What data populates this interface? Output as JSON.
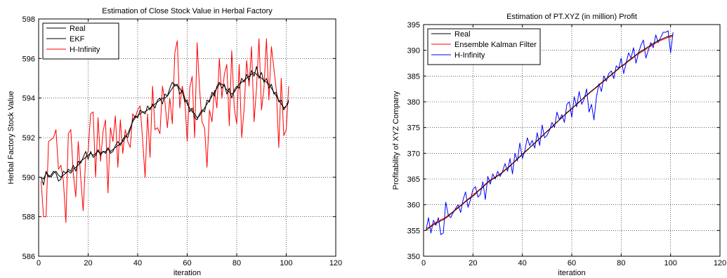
{
  "chart_data": [
    {
      "type": "line",
      "title": "Estimation of Close Stock Value in Herbal Factory",
      "xlabel": "iteration",
      "ylabel": "Herbal Factory Stock Value",
      "xlim": [
        0,
        120
      ],
      "ylim": [
        586,
        598
      ],
      "xticks": [
        0,
        20,
        40,
        60,
        80,
        100,
        120
      ],
      "yticks": [
        586,
        588,
        590,
        592,
        594,
        596,
        598
      ],
      "grid": true,
      "legend_position": "top-left",
      "x_start": 1,
      "series": [
        {
          "name": "Real",
          "color": "#000000",
          "values": [
            590.0,
            589.9,
            590.2,
            590.1,
            590.0,
            590.2,
            590.3,
            590.1,
            590.0,
            590.1,
            590.2,
            590.3,
            590.2,
            590.4,
            590.5,
            590.6,
            590.8,
            590.9,
            591.0,
            591.1,
            591.2,
            591.1,
            591.2,
            591.3,
            591.2,
            591.3,
            591.3,
            591.4,
            591.3,
            591.4,
            591.5,
            591.6,
            591.7,
            591.8,
            592.0,
            592.2,
            592.5,
            592.8,
            593.0,
            593.1,
            593.2,
            593.3,
            593.3,
            593.4,
            593.5,
            593.6,
            593.7,
            593.8,
            593.9,
            594.0,
            594.0,
            594.1,
            594.3,
            594.5,
            594.7,
            594.6,
            594.5,
            594.3,
            594.0,
            593.7,
            593.5,
            593.3,
            593.2,
            593.0,
            593.1,
            593.3,
            593.5,
            593.7,
            593.9,
            594.1,
            594.3,
            594.5,
            594.7,
            594.7,
            594.6,
            594.4,
            594.3,
            594.2,
            594.3,
            594.5,
            594.7,
            594.8,
            594.9,
            595.0,
            595.1,
            595.2,
            595.3,
            595.2,
            595.1,
            595.0,
            594.9,
            594.8,
            594.7,
            594.5,
            594.3,
            594.1,
            593.9,
            593.7,
            593.5,
            593.6,
            593.8
          ]
        },
        {
          "name": "EKF",
          "color": "#000000",
          "values": [
            590.0,
            589.6,
            590.3,
            590.0,
            590.1,
            590.3,
            590.2,
            589.8,
            589.9,
            590.3,
            590.2,
            590.4,
            590.3,
            590.6,
            590.3,
            590.8,
            590.7,
            591.0,
            591.3,
            590.9,
            591.3,
            591.0,
            591.1,
            591.4,
            591.1,
            591.3,
            591.2,
            591.5,
            591.2,
            591.3,
            591.6,
            591.8,
            591.6,
            591.9,
            592.1,
            592.0,
            592.4,
            592.9,
            593.1,
            593.0,
            593.4,
            593.3,
            593.2,
            593.6,
            593.4,
            593.7,
            593.5,
            593.9,
            594.0,
            593.7,
            594.2,
            594.1,
            594.5,
            594.8,
            594.6,
            594.7,
            594.2,
            594.4,
            593.8,
            593.9,
            593.3,
            593.5,
            593.0,
            592.9,
            593.2,
            593.4,
            593.3,
            593.9,
            593.8,
            594.3,
            594.1,
            594.6,
            594.8,
            594.5,
            594.7,
            594.2,
            594.5,
            594.0,
            594.4,
            594.6,
            594.5,
            595.0,
            594.8,
            595.2,
            594.9,
            595.4,
            595.1,
            595.6,
            595.0,
            595.3,
            594.8,
            595.0,
            594.5,
            594.7,
            594.2,
            594.3,
            593.8,
            593.9,
            593.4,
            593.6,
            593.9
          ]
        },
        {
          "name": "H-Infinity",
          "color": "#ff0000",
          "values": [
            589.8,
            588.0,
            588.0,
            591.8,
            591.9,
            592.0,
            592.4,
            590.4,
            590.6,
            589.8,
            587.7,
            592.2,
            592.4,
            590.2,
            589.0,
            591.8,
            590.0,
            588.3,
            591.0,
            591.3,
            593.2,
            593.3,
            590.0,
            593.0,
            590.8,
            592.3,
            592.9,
            589.2,
            592.5,
            591.8,
            593.1,
            590.5,
            592.9,
            591.2,
            592.4,
            591.8,
            591.5,
            593.2,
            593.0,
            593.4,
            593.6,
            591.9,
            590.0,
            593.2,
            591.0,
            594.6,
            592.4,
            592.5,
            592.2,
            594.6,
            593.8,
            592.5,
            594.0,
            592.7,
            596.3,
            596.9,
            593.5,
            594.6,
            594.0,
            591.8,
            594.5,
            595.1,
            592.0,
            596.8,
            594.5,
            592.8,
            592.5,
            590.5,
            593.4,
            592.8,
            594.4,
            593.5,
            596.0,
            594.0,
            595.2,
            595.7,
            592.6,
            596.4,
            593.5,
            592.7,
            595.7,
            592.0,
            593.5,
            595.9,
            594.6,
            596.6,
            592.8,
            594.5,
            597.0,
            593.4,
            594.5,
            597.0,
            593.9,
            596.6,
            595.5,
            594.4,
            591.5,
            595.0,
            592.1,
            592.4,
            594.6
          ]
        }
      ]
    },
    {
      "type": "line",
      "title": "Estimation of PT.XYZ (in million) Profit",
      "xlabel": "iteration",
      "ylabel": "Profitability of XYZ Company",
      "xlim": [
        0,
        120
      ],
      "ylim": [
        350,
        395
      ],
      "xticks": [
        0,
        20,
        40,
        60,
        80,
        100,
        120
      ],
      "yticks": [
        350,
        355,
        360,
        365,
        370,
        375,
        380,
        385,
        390,
        395
      ],
      "grid": true,
      "legend_position": "top-left",
      "x_start": 1,
      "series": [
        {
          "name": "Real",
          "color": "#000000",
          "values": [
            355.0,
            355.4,
            355.8,
            356.1,
            356.4,
            356.6,
            356.9,
            357.1,
            357.4,
            357.8,
            358.2,
            358.6,
            359.0,
            359.4,
            359.8,
            360.2,
            360.6,
            361.0,
            361.3,
            361.7,
            362.1,
            362.6,
            363.0,
            363.4,
            363.9,
            364.3,
            364.7,
            365.0,
            365.3,
            365.6,
            365.9,
            366.3,
            366.7,
            367.1,
            367.5,
            368.0,
            368.4,
            368.9,
            369.3,
            369.8,
            370.2,
            370.6,
            371.1,
            371.5,
            372.0,
            372.4,
            372.9,
            373.3,
            373.8,
            374.2,
            374.7,
            375.1,
            375.6,
            376.0,
            376.5,
            377.0,
            377.4,
            377.9,
            378.3,
            378.7,
            379.1,
            379.6,
            380.0,
            380.4,
            380.9,
            381.3,
            381.7,
            382.1,
            382.5,
            382.9,
            383.3,
            383.7,
            384.1,
            384.5,
            384.9,
            385.3,
            385.7,
            386.1,
            386.5,
            386.9,
            387.2,
            387.6,
            388.0,
            388.4,
            388.7,
            389.1,
            389.5,
            389.8,
            390.1,
            390.4,
            390.7,
            391.0,
            391.3,
            391.6,
            391.9,
            392.1,
            392.3,
            392.5,
            392.7,
            392.8,
            393.0
          ]
        },
        {
          "name": "Ensemble Kalman Filter",
          "color": "#ff0000",
          "values": [
            355.3,
            355.6,
            355.9,
            356.3,
            356.6,
            356.8,
            357.1,
            357.3,
            357.6,
            358.0,
            358.3,
            358.7,
            359.1,
            359.5,
            359.9,
            360.3,
            360.7,
            361.1,
            361.5,
            361.9,
            362.3,
            362.7,
            363.1,
            363.5,
            364.0,
            364.4,
            364.8,
            365.1,
            365.4,
            365.7,
            366.0,
            366.4,
            366.8,
            367.2,
            367.6,
            368.0,
            368.5,
            368.9,
            369.4,
            369.8,
            370.3,
            370.7,
            371.1,
            371.6,
            372.0,
            372.5,
            372.9,
            373.4,
            373.8,
            374.3,
            374.7,
            375.2,
            375.6,
            376.1,
            376.5,
            376.9,
            377.4,
            377.8,
            378.2,
            378.6,
            379.1,
            379.5,
            379.9,
            380.4,
            380.8,
            381.2,
            381.6,
            382.0,
            382.4,
            382.8,
            383.2,
            383.6,
            384.0,
            384.4,
            384.8,
            385.2,
            385.6,
            386.0,
            386.4,
            386.8,
            387.1,
            387.5,
            387.9,
            388.2,
            388.6,
            389.0,
            389.3,
            389.6,
            389.9,
            390.2,
            390.5,
            390.8,
            391.1,
            391.4,
            391.7,
            391.9,
            392.1,
            392.3,
            392.5,
            392.6,
            392.8
          ]
        },
        {
          "name": "H-Infinity",
          "color": "#0000ff",
          "values": [
            355.0,
            357.5,
            354.5,
            357.0,
            356.0,
            357.5,
            354.2,
            354.5,
            360.5,
            358.0,
            357.5,
            358.5,
            359.3,
            360.0,
            358.5,
            361.0,
            362.5,
            359.5,
            361.0,
            363.0,
            363.5,
            361.5,
            362.0,
            364.5,
            361.0,
            365.5,
            364.0,
            366.0,
            365.0,
            366.5,
            365.5,
            366.5,
            368.0,
            366.5,
            369.0,
            366.0,
            370.0,
            368.5,
            372.0,
            369.0,
            370.5,
            373.0,
            371.5,
            372.5,
            371.0,
            374.0,
            371.5,
            375.5,
            373.0,
            373.5,
            374.5,
            376.0,
            375.0,
            378.0,
            376.5,
            377.5,
            376.0,
            379.5,
            380.0,
            377.0,
            381.0,
            379.0,
            382.0,
            379.5,
            380.5,
            382.5,
            378.0,
            379.5,
            376.5,
            381.0,
            383.5,
            382.0,
            385.0,
            384.0,
            385.5,
            386.0,
            384.5,
            387.0,
            386.5,
            388.5,
            385.5,
            387.5,
            389.5,
            388.5,
            390.5,
            387.5,
            389.5,
            391.0,
            392.0,
            388.5,
            390.0,
            391.5,
            390.5,
            393.0,
            391.5,
            392.5,
            393.5,
            393.5,
            393.8,
            389.5,
            393.5
          ]
        }
      ]
    }
  ]
}
